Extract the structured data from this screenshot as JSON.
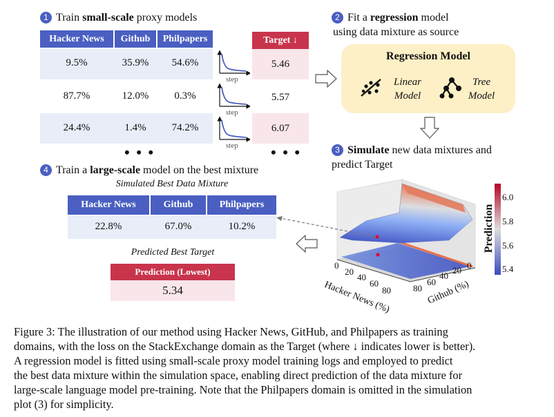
{
  "step1": {
    "num": "1",
    "pre": "Train ",
    "bold": "small-scale",
    "post": " proxy models"
  },
  "step2": {
    "num": "2",
    "pre": "Fit a ",
    "bold": "regression",
    "post": " model",
    "line2": "using data mixture as source"
  },
  "step3": {
    "num": "3",
    "bold": "Simulate",
    "post": " new data mixtures and",
    "line2": "predict Target"
  },
  "step4": {
    "num": "4",
    "pre": "Train a ",
    "bold": "large-scale",
    "post": " model on the best mixture"
  },
  "proxy_table": {
    "columns": [
      "Hacker News",
      "Github",
      "Philpapers"
    ],
    "target_header": "Target ↓",
    "rows": [
      {
        "hn": "9.5%",
        "gh": "35.9%",
        "pp": "54.6%",
        "target": "5.46"
      },
      {
        "hn": "87.7%",
        "gh": "12.0%",
        "pp": "0.3%",
        "target": "5.57"
      },
      {
        "hn": "24.4%",
        "gh": "1.4%",
        "pp": "74.2%",
        "target": "6.07"
      }
    ],
    "step_label": "step",
    "ellipsis": "• • •"
  },
  "regression": {
    "title": "Regression Model",
    "linear": "Linear",
    "linear2": "Model",
    "tree": "Tree",
    "tree2": "Model"
  },
  "best_mixture": {
    "title": "Simulated Best Data Mixture",
    "columns": [
      "Hacker News",
      "Github",
      "Philpapers"
    ],
    "values": [
      "22.8%",
      "67.0%",
      "10.2%"
    ]
  },
  "best_target": {
    "title": "Predicted Best Target",
    "header": "Prediction (Lowest)",
    "value": "5.34"
  },
  "plot3d": {
    "colorbar_label": "Prediction",
    "colorbar_ticks": [
      "6.0",
      "5.8",
      "5.6",
      "5.4"
    ],
    "x_label": "Hacker News (%)",
    "x_ticks": [
      "0",
      "20",
      "40",
      "60",
      "80"
    ],
    "y_label": "Github (%)",
    "y_ticks": [
      "0",
      "20",
      "40",
      "60",
      "80"
    ],
    "colors": {
      "low": "#3b4cc0",
      "mid": "#dddddd",
      "high": "#b40426"
    }
  },
  "caption": [
    "Figure 3: The illustration of our method using Hacker News, GitHub, and Philpapers as training",
    "domains, with the loss on the StackExchange domain as the Target (where ↓ indicates lower is better).",
    "A regression model is fitted using small-scale proxy model training logs and employed to predict",
    "the best data mixture within the simulation space, enabling direct prediction of the data mixture for",
    "large-scale language model pre-training. Note that the Philpapers domain is omitted in the simulation",
    "plot (3) for simplicity."
  ]
}
